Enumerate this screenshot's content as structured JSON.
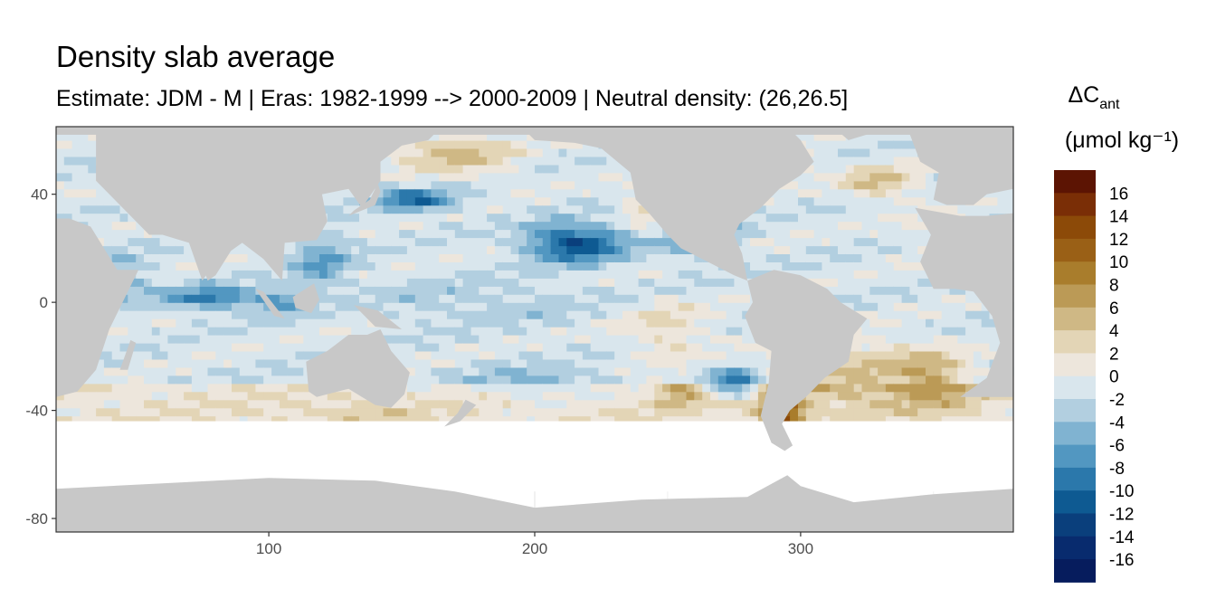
{
  "chart_data": {
    "type": "heatmap",
    "title": "Density slab average",
    "subtitle": "Estimate: JDM - M | Eras: 1982-1999 --> 2000-2009 | Neutral density: (26,26.5]",
    "legend_title_main": "ΔC",
    "legend_title_sub": "ant",
    "legend_unit": "(μmol kg⁻¹)",
    "x_ticks": [
      100,
      200,
      300
    ],
    "y_ticks": [
      40,
      0,
      -40,
      -80
    ],
    "xlim": [
      20,
      380
    ],
    "ylim": [
      -85,
      65
    ],
    "grid": true,
    "legend_position": "right",
    "legend": [
      {
        "label": "16",
        "color": "#5c1403"
      },
      {
        "label": "14",
        "color": "#7a2e06"
      },
      {
        "label": "12",
        "color": "#8c4a08"
      },
      {
        "label": "10",
        "color": "#9a6016"
      },
      {
        "label": "8",
        "color": "#a97d2c"
      },
      {
        "label": "6",
        "color": "#bb9a56"
      },
      {
        "label": "4",
        "color": "#cfb885"
      },
      {
        "label": "2",
        "color": "#e3d5b6"
      },
      {
        "label": "0",
        "color": "#ede6dc"
      },
      {
        "label": "-2",
        "color": "#d9e6ed"
      },
      {
        "label": "-4",
        "color": "#b2cfe0"
      },
      {
        "label": "-6",
        "color": "#80b3d1"
      },
      {
        "label": "-8",
        "color": "#5297c1"
      },
      {
        "label": "-10",
        "color": "#2b78ab"
      },
      {
        "label": "-12",
        "color": "#0e5a92"
      },
      {
        "label": "-14",
        "color": "#0a3f7c"
      },
      {
        "label": "-16",
        "color": "#082b6e"
      },
      {
        "label": "",
        "color": "#061c5d"
      }
    ],
    "land_color": "#c8c8c8"
  }
}
